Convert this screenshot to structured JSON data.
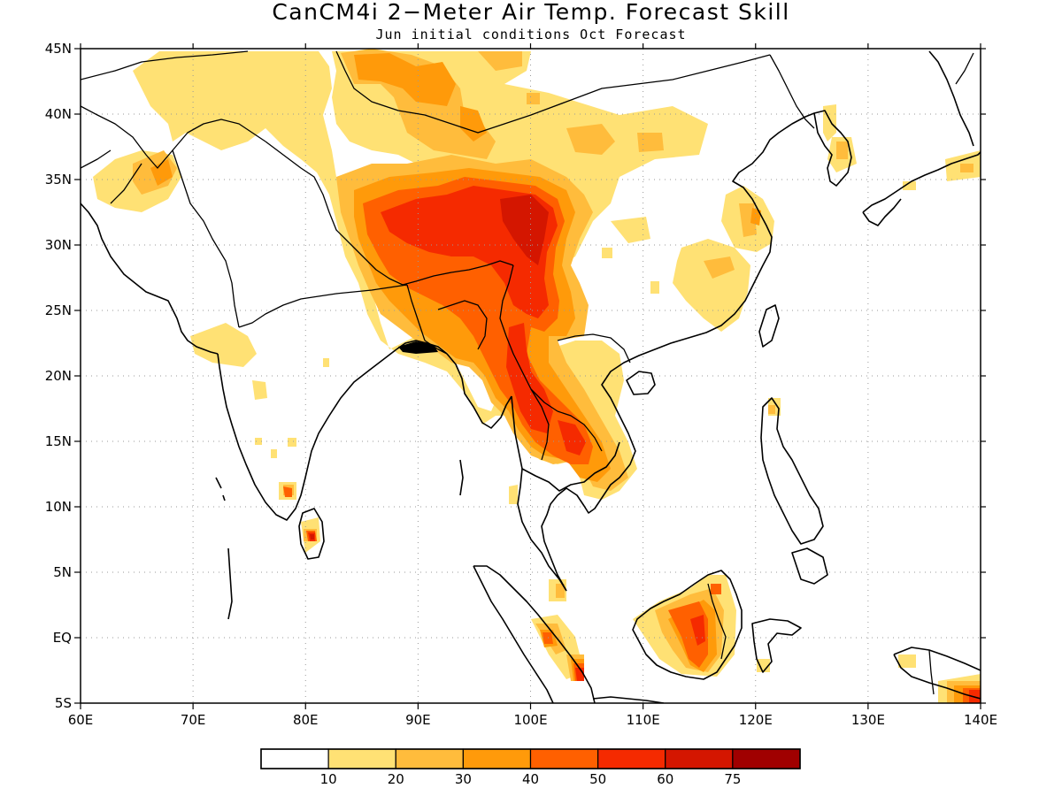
{
  "title": "CanCM4i 2−Meter Air Temp. Forecast Skill",
  "subtitle": "Jun initial conditions  Oct Forecast",
  "map": {
    "lon_range": [
      60,
      140
    ],
    "lat_range": [
      -5,
      45
    ],
    "lon_ticks": [
      {
        "value": 60,
        "label": "60E"
      },
      {
        "value": 70,
        "label": "70E"
      },
      {
        "value": 80,
        "label": "80E"
      },
      {
        "value": 90,
        "label": "90E"
      },
      {
        "value": 100,
        "label": "100E"
      },
      {
        "value": 110,
        "label": "110E"
      },
      {
        "value": 120,
        "label": "120E"
      },
      {
        "value": 130,
        "label": "130E"
      },
      {
        "value": 140,
        "label": "140E"
      }
    ],
    "lat_ticks": [
      {
        "value": 45,
        "label": "45N"
      },
      {
        "value": 40,
        "label": "40N"
      },
      {
        "value": 35,
        "label": "35N"
      },
      {
        "value": 30,
        "label": "30N"
      },
      {
        "value": 25,
        "label": "25N"
      },
      {
        "value": 20,
        "label": "20N"
      },
      {
        "value": 15,
        "label": "15N"
      },
      {
        "value": 10,
        "label": "10N"
      },
      {
        "value": 5,
        "label": "5N"
      },
      {
        "value": 0,
        "label": "EQ"
      },
      {
        "value": -5,
        "label": "5S"
      }
    ]
  },
  "colorbar": {
    "labels": [
      "10",
      "20",
      "30",
      "40",
      "50",
      "60",
      "75"
    ],
    "colors": [
      "#ffffff",
      "#ffe174",
      "#ffbc3c",
      "#ff9a0a",
      "#ff6000",
      "#f52a00",
      "#d41600",
      "#a00000"
    ]
  }
}
